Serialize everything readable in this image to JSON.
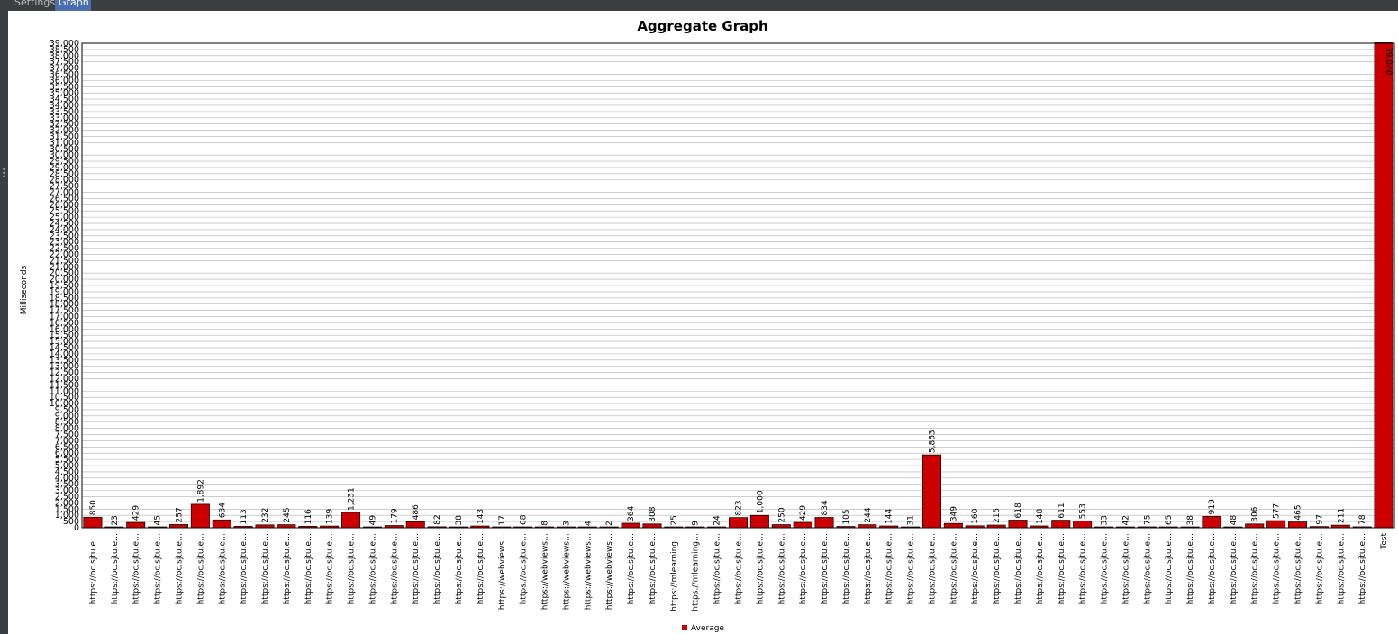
{
  "tabs": [
    {
      "label": "Settings",
      "active": false
    },
    {
      "label": "Graph",
      "active": true
    }
  ],
  "chart_data": {
    "type": "bar",
    "title": "Aggregate Graph",
    "xlabel": "",
    "ylabel": "Milliseconds",
    "ylim": [
      0,
      39000
    ],
    "ytick_step": 500,
    "grid": true,
    "legend_position": "bottom",
    "bar_color": "#cc0000",
    "categories": [
      "https://oc.sjtu.e…",
      "https://oc.sjtu.e…",
      "https://oc.sjtu.e…",
      "https://oc.sjtu.e…",
      "https://oc.sjtu.e…",
      "https://oc.sjtu.e…",
      "https://oc.sjtu.e…",
      "https://oc.sjtu.e…",
      "https://oc.sjtu.e…",
      "https://oc.sjtu.e…",
      "https://oc.sjtu.e…",
      "https://oc.sjtu.e…",
      "https://oc.sjtu.e…",
      "https://oc.sjtu.e…",
      "https://oc.sjtu.e…",
      "https://oc.sjtu.e…",
      "https://oc.sjtu.e…",
      "https://oc.sjtu.e…",
      "https://oc.sjtu.e…",
      "https://webviews…",
      "https://oc.sjtu.e…",
      "https://webviews…",
      "https://webviews…",
      "https://webviews…",
      "https://webviews…",
      "https://oc.sjtu.e…",
      "https://oc.sjtu.e…",
      "https://mlearning…",
      "https://mlearning…",
      "https://oc.sjtu.e…",
      "https://oc.sjtu.e…",
      "https://oc.sjtu.e…",
      "https://oc.sjtu.e…",
      "https://oc.sjtu.e…",
      "https://oc.sjtu.e…",
      "https://oc.sjtu.e…",
      "https://oc.sjtu.e…",
      "https://oc.sjtu.e…",
      "https://oc.sjtu.e…",
      "https://oc.sjtu.e…",
      "https://oc.sjtu.e…",
      "https://oc.sjtu.e…",
      "https://oc.sjtu.e…",
      "https://oc.sjtu.e…",
      "https://oc.sjtu.e…",
      "https://oc.sjtu.e…",
      "https://oc.sjtu.e…",
      "https://oc.sjtu.e…",
      "https://oc.sjtu.e…",
      "https://oc.sjtu.e…",
      "https://oc.sjtu.e…",
      "https://oc.sjtu.e…",
      "https://oc.sjtu.e…",
      "https://oc.sjtu.e…",
      "https://oc.sjtu.e…",
      "https://oc.sjtu.e…",
      "https://oc.sjtu.e…",
      "https://oc.sjtu.e…",
      "https://oc.sjtu.e…",
      "https://oc.sjtu.e…",
      "Test"
    ],
    "series": [
      {
        "name": "Average",
        "values": [
          850,
          23,
          429,
          45,
          257,
          1892,
          634,
          113,
          232,
          245,
          116,
          139,
          1231,
          49,
          179,
          486,
          82,
          38,
          143,
          17,
          68,
          8,
          3,
          4,
          2,
          364,
          308,
          25,
          9,
          24,
          823,
          1000,
          250,
          429,
          834,
          105,
          244,
          144,
          31,
          5863,
          349,
          160,
          215,
          618,
          148,
          611,
          553,
          33,
          42,
          75,
          65,
          38,
          919,
          48,
          306,
          577,
          465,
          97,
          211,
          78,
          39040
        ],
        "labels": [
          "850",
          "23",
          "429",
          "45",
          "257",
          "1,892",
          "634",
          "113",
          "232",
          "245",
          "116",
          "139",
          "1,231",
          "49",
          "179",
          "486",
          "82",
          "38",
          "143",
          "17",
          "68",
          "8",
          "3",
          "4",
          "2",
          "364",
          "308",
          "25",
          "9",
          "24",
          "823",
          "1,000",
          "250",
          "429",
          "834",
          "105",
          "244",
          "144",
          "31",
          "5,863",
          "349",
          "160",
          "215",
          "618",
          "148",
          "611",
          "553",
          "33",
          "42",
          "75",
          "65",
          "38",
          "919",
          "48",
          "306",
          "577",
          "465",
          "97",
          "211",
          "78",
          "39,040"
        ]
      }
    ]
  }
}
